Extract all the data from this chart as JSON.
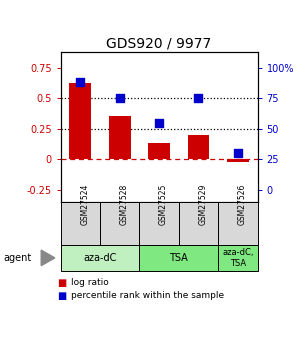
{
  "title": "GDS920 / 9977",
  "samples": [
    "GSM27524",
    "GSM27528",
    "GSM27525",
    "GSM27529",
    "GSM27526"
  ],
  "log_ratios": [
    0.62,
    0.35,
    0.13,
    0.2,
    -0.02
  ],
  "percentile_ranks": [
    0.88,
    0.75,
    0.55,
    0.75,
    0.3
  ],
  "bar_color": "#cc0000",
  "dot_color": "#0000cc",
  "ylim_left": [
    -0.35,
    0.88
  ],
  "ylim_right": [
    -0.35,
    0.88
  ],
  "yticks_left": [
    -0.25,
    0.0,
    0.25,
    0.5,
    0.75
  ],
  "ytick_labels_left": [
    "-0.25",
    "0",
    "0.25",
    "0.5",
    "0.75"
  ],
  "yticks_right_vals": [
    -0.25,
    0.0,
    0.25,
    0.5,
    0.75
  ],
  "ytick_labels_right": [
    "0",
    "25",
    "50",
    "75",
    "100%"
  ],
  "hlines_black": [
    0.25,
    0.5
  ],
  "hline_red": 0.0,
  "agent_groups": [
    {
      "label": "aza-dC",
      "span": [
        0,
        2
      ],
      "color": "#c0f0c0"
    },
    {
      "label": "TSA",
      "span": [
        2,
        4
      ],
      "color": "#80e880"
    },
    {
      "label": "aza-dC,\nTSA",
      "span": [
        4,
        5
      ],
      "color": "#80e880"
    }
  ],
  "bar_width": 0.55,
  "background_color": "#ffffff",
  "title_fontsize": 10,
  "tick_fontsize": 7,
  "sample_fontsize": 5.5,
  "agent_fontsize": 7,
  "legend_fontsize": 6.5
}
